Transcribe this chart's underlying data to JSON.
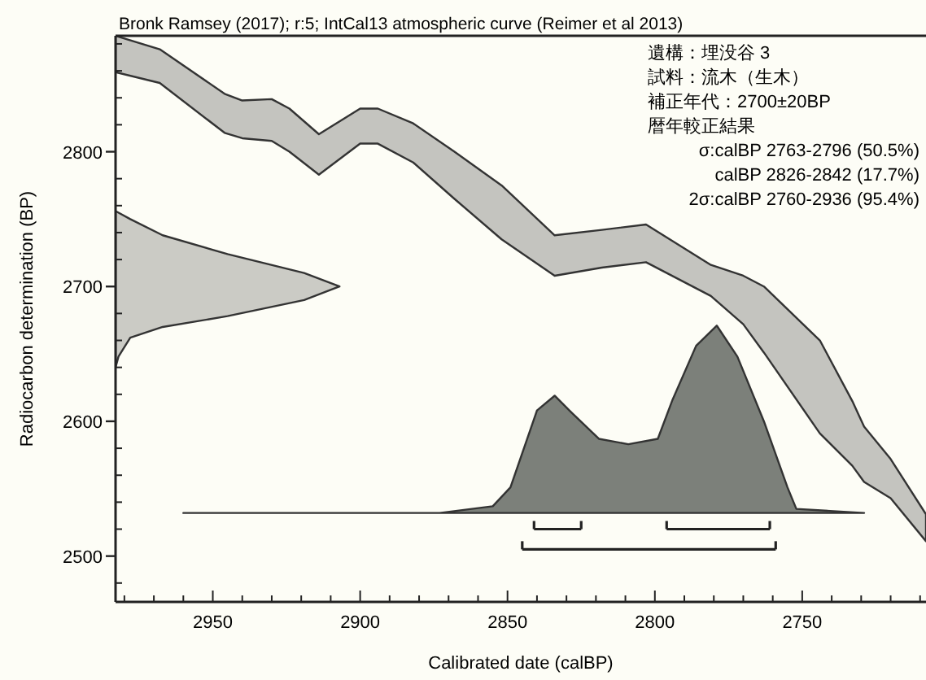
{
  "chart_data": {
    "type": "area",
    "title": "Bronk Ramsey (2017); r:5; IntCal13 atmospheric curve (Reimer et al 2013)",
    "xlabel": "Calibrated date (calBP)",
    "ylabel": "Radiocarbon determination (BP)",
    "annotations": [
      "遺構：埋没谷 3",
      "試料：流木（生木）",
      "補正年代：2700±20BP",
      "暦年較正結果",
      "σ:calBP 2763-2796 (50.5%)",
      "calBP 2826-2842 (17.7%)",
      "2σ:calBP 2760-2936 (95.4%)"
    ],
    "xlim": [
      2983,
      2708
    ],
    "ylim": [
      2466,
      2886
    ],
    "xticks": [
      {
        "value": 2980,
        "label": null
      },
      {
        "value": 2970,
        "label": null
      },
      {
        "value": 2960,
        "label": null
      },
      2950,
      {
        "value": 2940,
        "label": null
      },
      {
        "value": 2930,
        "label": null
      },
      {
        "value": 2920,
        "label": null
      },
      {
        "value": 2910,
        "label": null
      },
      2900,
      {
        "value": 2890,
        "label": null
      },
      {
        "value": 2880,
        "label": null
      },
      {
        "value": 2870,
        "label": null
      },
      {
        "value": 2860,
        "label": null
      },
      2850,
      {
        "value": 2840,
        "label": null
      },
      {
        "value": 2830,
        "label": null
      },
      {
        "value": 2820,
        "label": null
      },
      {
        "value": 2810,
        "label": null
      },
      2800,
      {
        "value": 2790,
        "label": null
      },
      {
        "value": 2780,
        "label": null
      },
      {
        "value": 2770,
        "label": null
      },
      {
        "value": 2760,
        "label": null
      },
      2750,
      {
        "value": 2740,
        "label": null
      },
      {
        "value": 2730,
        "label": null
      },
      {
        "value": 2720,
        "label": null
      },
      {
        "value": 2710,
        "label": null
      }
    ],
    "yticks": [
      {
        "value": 2480,
        "label": null
      },
      2500,
      {
        "value": 2520,
        "label": null
      },
      {
        "value": 2540,
        "label": null
      },
      {
        "value": 2560,
        "label": null
      },
      {
        "value": 2580,
        "label": null
      },
      2600,
      {
        "value": 2620,
        "label": null
      },
      {
        "value": 2640,
        "label": null
      },
      {
        "value": 2660,
        "label": null
      },
      {
        "value": 2680,
        "label": null
      },
      2700,
      {
        "value": 2720,
        "label": null
      },
      {
        "value": 2740,
        "label": null
      },
      {
        "value": 2760,
        "label": null
      },
      {
        "value": 2780,
        "label": null
      },
      2800,
      {
        "value": 2820,
        "label": null
      },
      {
        "value": 2840,
        "label": null
      },
      {
        "value": 2860,
        "label": null
      },
      {
        "value": 2880,
        "label": null
      }
    ],
    "series": [
      {
        "type": "area",
        "color": "#c4c4bf",
        "x": [
          2983,
          2968,
          2946,
          2940,
          2930,
          2924,
          2914,
          2900,
          2894,
          2882,
          2868,
          2852,
          2834,
          2818,
          2803,
          2781,
          2770,
          2763,
          2744,
          2733,
          2729,
          2720,
          2708
        ],
        "upper": [
          2886,
          2876,
          2843,
          2838,
          2839,
          2832,
          2813,
          2832,
          2832,
          2821,
          2800,
          2775,
          2738,
          2742,
          2746,
          2716,
          2708,
          2700,
          2660,
          2615,
          2596,
          2572,
          2531
        ],
        "values": [
          null,
          null,
          null,
          null,
          null,
          null,
          null,
          null,
          null,
          null,
          null,
          null,
          null,
          null,
          null,
          null,
          null,
          null,
          null,
          null,
          null,
          null,
          null
        ],
        "lower": [
          2859,
          2851,
          2814,
          2810,
          2808,
          2800,
          2783,
          2806,
          2806,
          2792,
          2765,
          2735,
          2708,
          2714,
          2718,
          2693,
          2672,
          2651,
          2591,
          2567,
          2555,
          2543,
          2511
        ]
      },
      {
        "type": "area",
        "color": "#cbcbc5",
        "x": [
          2983,
          2978,
          2967,
          2945,
          2919,
          2907,
          2919,
          2945,
          2967,
          2978,
          2982,
          2983
        ],
        "values": [
          2756,
          2750,
          2738,
          2724,
          2710,
          2700,
          2690,
          2678,
          2670,
          2662,
          2648,
          2640
        ]
      },
      {
        "type": "area",
        "color": "#7c807a",
        "x": [
          2960,
          2873,
          2855,
          2849,
          2840,
          2834,
          2829,
          2819,
          2809,
          2799,
          2794,
          2786,
          2779,
          2772,
          2763,
          2755,
          2752,
          2729
        ],
        "values": [
          2532,
          2532,
          2537,
          2551,
          2608,
          2619,
          2608,
          2587,
          2583,
          2587,
          2616,
          2656,
          2671,
          2648,
          2600,
          2551,
          2535,
          2532
        ]
      },
      {
        "type": "line",
        "color": "#222222",
        "x": [
          2841,
          2825
        ],
        "values": [
          2520,
          2520
        ]
      },
      {
        "type": "line",
        "color": "#222222",
        "x": [
          2796,
          2761
        ],
        "values": [
          2520,
          2520
        ]
      },
      {
        "type": "line",
        "color": "#222222",
        "x": [
          2845,
          2759
        ],
        "values": [
          2505,
          2505
        ]
      }
    ]
  }
}
